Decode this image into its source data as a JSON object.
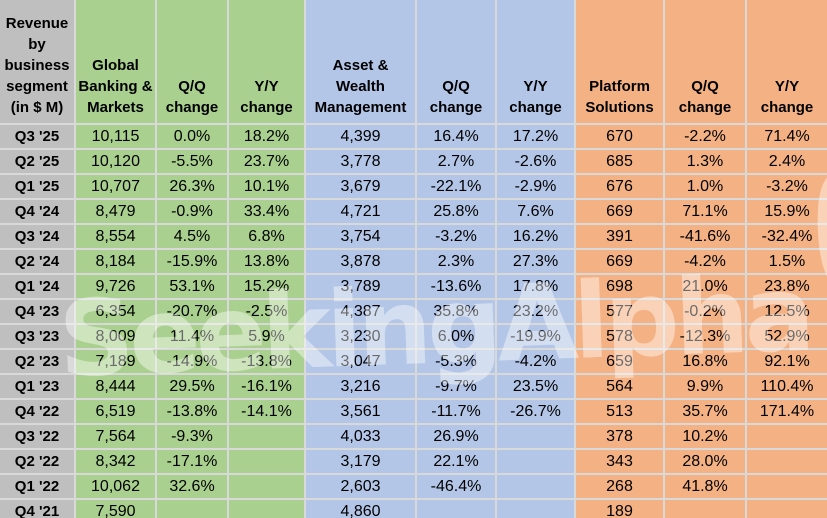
{
  "watermark": {
    "text": "SeekingAlpha",
    "alpha": "α"
  },
  "colors": {
    "gray_header": "#BFBFBF",
    "green_group": "#A9D08E",
    "blue_group": "#B4C6E7",
    "orange_group": "#F4B183",
    "gridline": "#D9D9D9",
    "text": "#000000"
  },
  "chart_data": {
    "type": "table",
    "title": "Revenue by business segment (in $ M)",
    "corner_header": "Revenue by business segment (in $ M)",
    "column_groups": [
      {
        "name": "Global Banking & Markets",
        "color": "#A9D08E",
        "columns": 3
      },
      {
        "name": "Asset & Wealth Management",
        "color": "#B4C6E7",
        "columns": 3
      },
      {
        "name": "Platform Solutions",
        "color": "#F4B183",
        "columns": 3
      }
    ],
    "columns": [
      "Global Banking & Markets",
      "Q/Q change",
      "Y/Y change",
      "Asset & Wealth Management",
      "Q/Q change",
      "Y/Y change",
      "Platform Solutions",
      "Q/Q change",
      "Y/Y change"
    ],
    "rows": [
      {
        "label": "Q3 '25",
        "cells": [
          "10,115",
          "0.0%",
          "18.2%",
          "4,399",
          "16.4%",
          "17.2%",
          "670",
          "-2.2%",
          "71.4%"
        ]
      },
      {
        "label": "Q2 '25",
        "cells": [
          "10,120",
          "-5.5%",
          "23.7%",
          "3,778",
          "2.7%",
          "-2.6%",
          "685",
          "1.3%",
          "2.4%"
        ]
      },
      {
        "label": "Q1 '25",
        "cells": [
          "10,707",
          "26.3%",
          "10.1%",
          "3,679",
          "-22.1%",
          "-2.9%",
          "676",
          "1.0%",
          "-3.2%"
        ]
      },
      {
        "label": "Q4 '24",
        "cells": [
          "8,479",
          "-0.9%",
          "33.4%",
          "4,721",
          "25.8%",
          "7.6%",
          "669",
          "71.1%",
          "15.9%"
        ]
      },
      {
        "label": "Q3 '24",
        "cells": [
          "8,554",
          "4.5%",
          "6.8%",
          "3,754",
          "-3.2%",
          "16.2%",
          "391",
          "-41.6%",
          "-32.4%"
        ]
      },
      {
        "label": "Q2 '24",
        "cells": [
          "8,184",
          "-15.9%",
          "13.8%",
          "3,878",
          "2.3%",
          "27.3%",
          "669",
          "-4.2%",
          "1.5%"
        ]
      },
      {
        "label": "Q1 '24",
        "cells": [
          "9,726",
          "53.1%",
          "15.2%",
          "3,789",
          "-13.6%",
          "17.8%",
          "698",
          "21.0%",
          "23.8%"
        ]
      },
      {
        "label": "Q4 '23",
        "cells": [
          "6,354",
          "-20.7%",
          "-2.5%",
          "4,387",
          "35.8%",
          "23.2%",
          "577",
          "-0.2%",
          "12.5%"
        ]
      },
      {
        "label": "Q3 '23",
        "cells": [
          "8,009",
          "11.4%",
          "5.9%",
          "3,230",
          "6.0%",
          "-19.9%",
          "578",
          "-12.3%",
          "52.9%"
        ]
      },
      {
        "label": "Q2 '23",
        "cells": [
          "7,189",
          "-14.9%",
          "-13.8%",
          "3,047",
          "-5.3%",
          "-4.2%",
          "659",
          "16.8%",
          "92.1%"
        ]
      },
      {
        "label": "Q1 '23",
        "cells": [
          "8,444",
          "29.5%",
          "-16.1%",
          "3,216",
          "-9.7%",
          "23.5%",
          "564",
          "9.9%",
          "110.4%"
        ]
      },
      {
        "label": "Q4 '22",
        "cells": [
          "6,519",
          "-13.8%",
          "-14.1%",
          "3,561",
          "-11.7%",
          "-26.7%",
          "513",
          "35.7%",
          "171.4%"
        ]
      },
      {
        "label": "Q3 '22",
        "cells": [
          "7,564",
          "-9.3%",
          "",
          "4,033",
          "26.9%",
          "",
          "378",
          "10.2%",
          ""
        ]
      },
      {
        "label": "Q2 '22",
        "cells": [
          "8,342",
          "-17.1%",
          "",
          "3,179",
          "22.1%",
          "",
          "343",
          "28.0%",
          ""
        ]
      },
      {
        "label": "Q1 '22",
        "cells": [
          "10,062",
          "32.6%",
          "",
          "2,603",
          "-46.4%",
          "",
          "268",
          "41.8%",
          ""
        ]
      },
      {
        "label": "Q4 '21",
        "cells": [
          "7,590",
          "",
          "",
          "4,860",
          "",
          "",
          "189",
          "",
          ""
        ]
      }
    ]
  }
}
